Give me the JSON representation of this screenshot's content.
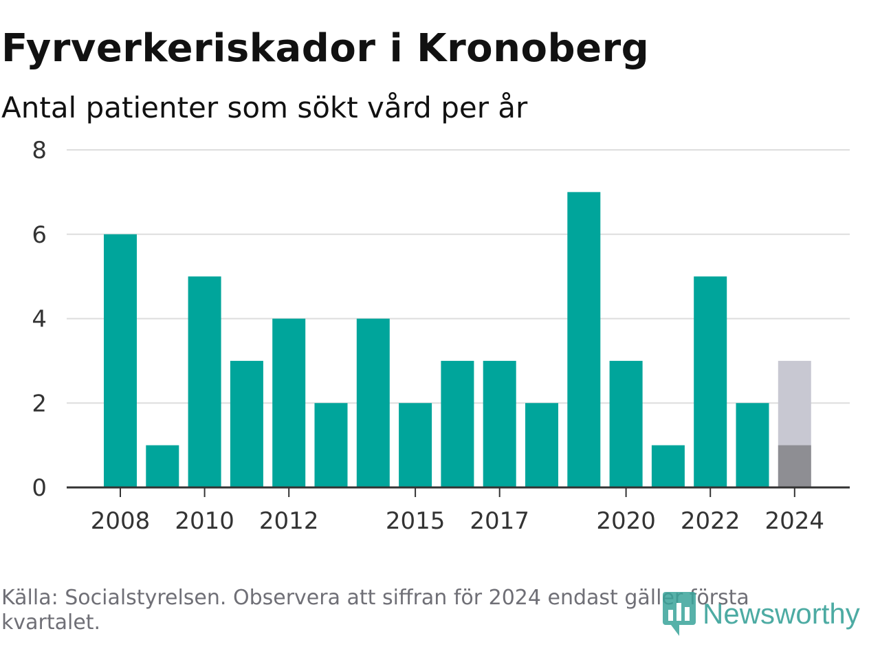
{
  "title": "Fyrverkeriskador i Kronoberg",
  "subtitle": "Antal patienter som sökt vård per år",
  "source": "Källa: Socialstyrelsen. Observera att siffran för 2024 endast gäller första kvartalet.",
  "logo": {
    "text": "Newsworthy",
    "icon": "newsworthy-logo-icon"
  },
  "colors": {
    "bar": "#00a59b",
    "bar_partial": "#8e8e93",
    "bar_projection": "#c8c8d2",
    "grid": "#dddddd",
    "axis": "#333333"
  },
  "chart_data": {
    "type": "bar",
    "categories": [
      "2008",
      "2009",
      "2010",
      "2011",
      "2012",
      "2013",
      "2014",
      "2015",
      "2016",
      "2017",
      "2018",
      "2019",
      "2020",
      "2021",
      "2022",
      "2023",
      "2024"
    ],
    "values": [
      6,
      1,
      5,
      3,
      4,
      2,
      4,
      2,
      3,
      3,
      2,
      7,
      3,
      1,
      5,
      2,
      1
    ],
    "overlay": {
      "category": "2024",
      "value": 3
    },
    "x_tick_labels": [
      "2008",
      "2010",
      "2012",
      "2015",
      "2017",
      "2020",
      "2022",
      "2024"
    ],
    "y_ticks": [
      0,
      2,
      4,
      6,
      8
    ],
    "ylim": [
      0,
      8
    ],
    "grid": true,
    "legend": "none"
  }
}
